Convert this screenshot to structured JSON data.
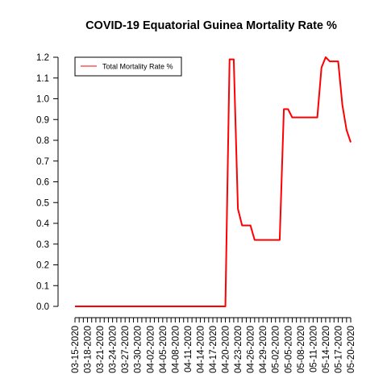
{
  "chart_data": {
    "type": "line",
    "title": "COVID-19 Equatorial Guinea Mortality Rate %",
    "xlabel": "",
    "ylabel": "",
    "ylim": [
      0,
      1.2
    ],
    "yticks": [
      "0.0",
      "0.1",
      "0.2",
      "0.3",
      "0.4",
      "0.5",
      "0.6",
      "0.7",
      "0.8",
      "0.9",
      "1.0",
      "1.1",
      "1.2"
    ],
    "x": [
      "03-15-2020",
      "03-16-2020",
      "03-17-2020",
      "03-18-2020",
      "03-19-2020",
      "03-20-2020",
      "03-21-2020",
      "03-22-2020",
      "03-23-2020",
      "03-24-2020",
      "03-25-2020",
      "03-26-2020",
      "03-27-2020",
      "03-28-2020",
      "03-29-2020",
      "03-30-2020",
      "03-31-2020",
      "04-01-2020",
      "04-02-2020",
      "04-03-2020",
      "04-04-2020",
      "04-05-2020",
      "04-06-2020",
      "04-07-2020",
      "04-08-2020",
      "04-09-2020",
      "04-10-2020",
      "04-11-2020",
      "04-12-2020",
      "04-13-2020",
      "04-14-2020",
      "04-15-2020",
      "04-16-2020",
      "04-17-2020",
      "04-18-2020",
      "04-19-2020",
      "04-20-2020",
      "04-21-2020",
      "04-22-2020",
      "04-23-2020",
      "04-24-2020",
      "04-25-2020",
      "04-26-2020",
      "04-27-2020",
      "04-28-2020",
      "04-29-2020",
      "04-30-2020",
      "05-01-2020",
      "05-02-2020",
      "05-03-2020",
      "05-04-2020",
      "05-05-2020",
      "05-06-2020",
      "05-07-2020",
      "05-08-2020",
      "05-09-2020",
      "05-10-2020",
      "05-11-2020",
      "05-12-2020",
      "05-13-2020",
      "05-14-2020",
      "05-15-2020",
      "05-16-2020",
      "05-17-2020",
      "05-18-2020",
      "05-19-2020",
      "05-20-2020"
    ],
    "xticks_labeled": [
      "03-15-2020",
      "03-18-2020",
      "03-21-2020",
      "03-24-2020",
      "03-27-2020",
      "03-30-2020",
      "04-02-2020",
      "04-05-2020",
      "04-08-2020",
      "04-11-2020",
      "04-14-2020",
      "04-17-2020",
      "04-20-2020",
      "04-23-2020",
      "04-26-2020",
      "04-29-2020",
      "05-02-2020",
      "05-05-2020",
      "05-08-2020",
      "05-11-2020",
      "05-14-2020",
      "05-17-2020",
      "05-20-2020"
    ],
    "series": [
      {
        "name": "Total Mortality Rate %",
        "color": "#ff0000",
        "values": [
          0,
          0,
          0,
          0,
          0,
          0,
          0,
          0,
          0,
          0,
          0,
          0,
          0,
          0,
          0,
          0,
          0,
          0,
          0,
          0,
          0,
          0,
          0,
          0,
          0,
          0,
          0,
          0,
          0,
          0,
          0,
          0,
          0,
          0,
          0,
          0,
          0,
          1.19,
          1.19,
          0.47,
          0.39,
          0.39,
          0.39,
          0.32,
          0.32,
          0.32,
          0.32,
          0.32,
          0.32,
          0.32,
          0.95,
          0.95,
          0.91,
          0.91,
          0.91,
          0.91,
          0.91,
          0.91,
          0.91,
          1.15,
          1.2,
          1.18,
          1.18,
          1.18,
          0.97,
          0.85,
          0.79
        ]
      }
    ],
    "legend": {
      "position": "top-left"
    },
    "grid": false
  }
}
